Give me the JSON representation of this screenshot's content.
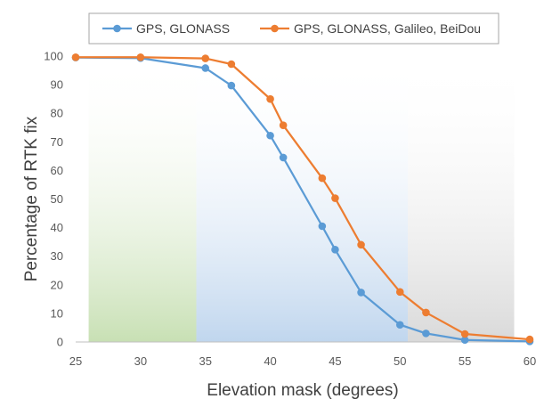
{
  "chart_data": {
    "type": "line",
    "title": "",
    "xlabel": "Elevation mask (degrees)",
    "ylabel": "Percentage of RTK fix",
    "xlim": [
      25,
      60
    ],
    "ylim": [
      0,
      100
    ],
    "xticks": [
      25,
      30,
      35,
      40,
      45,
      50,
      55,
      60
    ],
    "yticks": [
      0,
      10,
      20,
      30,
      40,
      50,
      60,
      70,
      80,
      90,
      100
    ],
    "grid": false,
    "legend_position": "top",
    "background_bands": [
      {
        "from": 26,
        "to": 34.3,
        "color": "#cfe3bf",
        "style": "gradient-green"
      },
      {
        "from": 34.3,
        "to": 50.6,
        "color": "#c5d9ee",
        "style": "gradient-blue"
      },
      {
        "from": 50.6,
        "to": 58.8,
        "color": "#dcdcdc",
        "style": "gradient-grey"
      }
    ],
    "series": [
      {
        "name": "GPS, GLONASS",
        "color": "#5b9bd5",
        "x": [
          25,
          30,
          35,
          37,
          40,
          41,
          44,
          45,
          47,
          50,
          52,
          55,
          60
        ],
        "y": [
          99.5,
          99.3,
          95.8,
          89.7,
          72.2,
          64.5,
          40.5,
          32.3,
          17.3,
          6.0,
          3.0,
          0.7,
          0.2
        ]
      },
      {
        "name": "GPS, GLONASS, Galileo, BeiDou",
        "color": "#ed7d31",
        "x": [
          25,
          30,
          35,
          37,
          40,
          41,
          44,
          45,
          47,
          50,
          52,
          55,
          60
        ],
        "y": [
          99.6,
          99.6,
          99.2,
          97.2,
          85.0,
          75.8,
          57.3,
          50.3,
          34.0,
          17.5,
          10.3,
          2.8,
          0.9
        ]
      }
    ]
  }
}
